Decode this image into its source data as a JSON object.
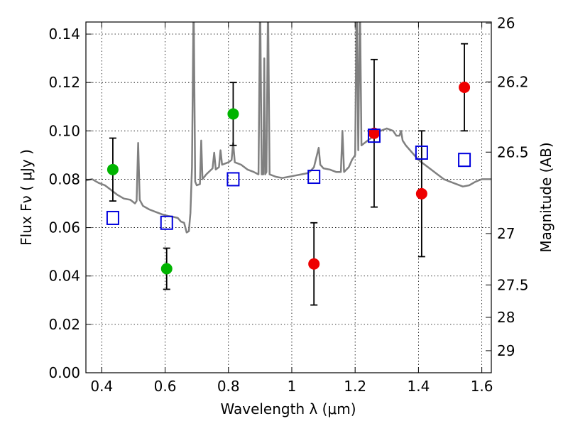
{
  "chart_data": {
    "type": "scatter",
    "xlabel": "Wavelength  λ (μm)",
    "ylabel": "Flux  Fν  ( μJy )",
    "y2label": "Magnitude (AB)",
    "xlim": [
      0.35,
      1.63
    ],
    "ylim": [
      0.0,
      0.145
    ],
    "grid": true,
    "x_ticks": [
      {
        "value": 0.4,
        "label": "0.4"
      },
      {
        "value": 0.6,
        "label": "0.6"
      },
      {
        "value": 0.8,
        "label": "0.8"
      },
      {
        "value": 1.0,
        "label": "1"
      },
      {
        "value": 1.2,
        "label": "1.2"
      },
      {
        "value": 1.4,
        "label": "1.4"
      },
      {
        "value": 1.6,
        "label": "1.6"
      }
    ],
    "y_ticks": [
      {
        "value": 0.0,
        "label": "0.00"
      },
      {
        "value": 0.02,
        "label": "0.02"
      },
      {
        "value": 0.04,
        "label": "0.04"
      },
      {
        "value": 0.06,
        "label": "0.06"
      },
      {
        "value": 0.08,
        "label": "0.08"
      },
      {
        "value": 0.1,
        "label": "0.10"
      },
      {
        "value": 0.12,
        "label": "0.12"
      },
      {
        "value": 0.14,
        "label": "0.14"
      }
    ],
    "mag_ticks": [
      {
        "value": 26,
        "label": "26"
      },
      {
        "value": 26.2,
        "label": "26.2"
      },
      {
        "value": 26.5,
        "label": "26.5"
      },
      {
        "value": 27,
        "label": "27"
      },
      {
        "value": 27.5,
        "label": "27.5"
      },
      {
        "value": 28,
        "label": "28"
      },
      {
        "value": 29,
        "label": "29"
      }
    ],
    "series": [
      {
        "color": "#808080",
        "kind": "spectrum",
        "points": [
          [
            0.35,
            0.0795
          ],
          [
            0.37,
            0.08
          ],
          [
            0.39,
            0.0785
          ],
          [
            0.41,
            0.0775
          ],
          [
            0.43,
            0.0755
          ],
          [
            0.45,
            0.0735
          ],
          [
            0.47,
            0.072
          ],
          [
            0.49,
            0.0715
          ],
          [
            0.505,
            0.07
          ],
          [
            0.51,
            0.071
          ],
          [
            0.515,
            0.095
          ],
          [
            0.52,
            0.0715
          ],
          [
            0.53,
            0.069
          ],
          [
            0.55,
            0.0675
          ],
          [
            0.57,
            0.0665
          ],
          [
            0.59,
            0.0655
          ],
          [
            0.61,
            0.0648
          ],
          [
            0.625,
            0.0645
          ],
          [
            0.64,
            0.064
          ],
          [
            0.65,
            0.0625
          ],
          [
            0.66,
            0.062
          ],
          [
            0.668,
            0.058
          ],
          [
            0.675,
            0.0585
          ],
          [
            0.68,
            0.066
          ],
          [
            0.685,
            0.085
          ],
          [
            0.69,
            0.155
          ],
          [
            0.695,
            0.079
          ],
          [
            0.7,
            0.0775
          ],
          [
            0.71,
            0.078
          ],
          [
            0.714,
            0.096
          ],
          [
            0.718,
            0.08
          ],
          [
            0.73,
            0.082
          ],
          [
            0.75,
            0.0845
          ],
          [
            0.755,
            0.091
          ],
          [
            0.76,
            0.084
          ],
          [
            0.77,
            0.085
          ],
          [
            0.775,
            0.092
          ],
          [
            0.78,
            0.086
          ],
          [
            0.8,
            0.087
          ],
          [
            0.81,
            0.088
          ],
          [
            0.815,
            0.095
          ],
          [
            0.82,
            0.087
          ],
          [
            0.84,
            0.086
          ],
          [
            0.86,
            0.084
          ],
          [
            0.88,
            0.083
          ],
          [
            0.895,
            0.082
          ],
          [
            0.9,
            0.155
          ],
          [
            0.905,
            0.082
          ],
          [
            0.91,
            0.082
          ],
          [
            0.913,
            0.13
          ],
          [
            0.916,
            0.082
          ],
          [
            0.92,
            0.083
          ],
          [
            0.925,
            0.155
          ],
          [
            0.93,
            0.082
          ],
          [
            0.95,
            0.081
          ],
          [
            0.97,
            0.0805
          ],
          [
            0.99,
            0.081
          ],
          [
            1.01,
            0.0815
          ],
          [
            1.03,
            0.082
          ],
          [
            1.05,
            0.0825
          ],
          [
            1.06,
            0.0835
          ],
          [
            1.07,
            0.085
          ],
          [
            1.085,
            0.093
          ],
          [
            1.09,
            0.086
          ],
          [
            1.1,
            0.0845
          ],
          [
            1.12,
            0.084
          ],
          [
            1.14,
            0.083
          ],
          [
            1.155,
            0.083
          ],
          [
            1.16,
            0.1
          ],
          [
            1.165,
            0.083
          ],
          [
            1.18,
            0.085
          ],
          [
            1.19,
            0.088
          ],
          [
            1.2,
            0.09
          ],
          [
            1.205,
            0.155
          ],
          [
            1.21,
            0.092
          ],
          [
            1.215,
            0.155
          ],
          [
            1.22,
            0.094
          ],
          [
            1.24,
            0.096
          ],
          [
            1.26,
            0.098
          ],
          [
            1.28,
            0.1
          ],
          [
            1.3,
            0.101
          ],
          [
            1.32,
            0.1
          ],
          [
            1.33,
            0.098
          ],
          [
            1.34,
            0.098
          ],
          [
            1.345,
            0.1
          ],
          [
            1.35,
            0.096
          ],
          [
            1.36,
            0.094
          ],
          [
            1.38,
            0.091
          ],
          [
            1.4,
            0.088
          ],
          [
            1.42,
            0.086
          ],
          [
            1.44,
            0.084
          ],
          [
            1.46,
            0.082
          ],
          [
            1.48,
            0.08
          ],
          [
            1.5,
            0.079
          ],
          [
            1.52,
            0.078
          ],
          [
            1.54,
            0.077
          ],
          [
            1.56,
            0.0775
          ],
          [
            1.58,
            0.079
          ],
          [
            1.6,
            0.08
          ],
          [
            1.63,
            0.08
          ]
        ]
      },
      {
        "color": "#00b400",
        "marker": "circle",
        "points": [
          {
            "x": 0.435,
            "y": 0.084,
            "err": 0.013
          },
          {
            "x": 0.605,
            "y": 0.043,
            "err": 0.0085
          },
          {
            "x": 0.815,
            "y": 0.107,
            "err": 0.013
          }
        ]
      },
      {
        "color": "#ee0000",
        "marker": "circle",
        "points": [
          {
            "x": 1.07,
            "y": 0.045,
            "err": 0.017
          },
          {
            "x": 1.26,
            "y": 0.099,
            "err": 0.0305
          },
          {
            "x": 1.41,
            "y": 0.074,
            "err": 0.026
          },
          {
            "x": 1.545,
            "y": 0.118,
            "err": 0.018
          }
        ]
      },
      {
        "color": "#0000dd",
        "marker": "square-open",
        "points": [
          {
            "x": 0.435,
            "y": 0.064
          },
          {
            "x": 0.605,
            "y": 0.062
          },
          {
            "x": 0.815,
            "y": 0.08
          },
          {
            "x": 1.07,
            "y": 0.081
          },
          {
            "x": 1.26,
            "y": 0.098
          },
          {
            "x": 1.41,
            "y": 0.091
          },
          {
            "x": 1.545,
            "y": 0.088
          }
        ]
      }
    ]
  }
}
